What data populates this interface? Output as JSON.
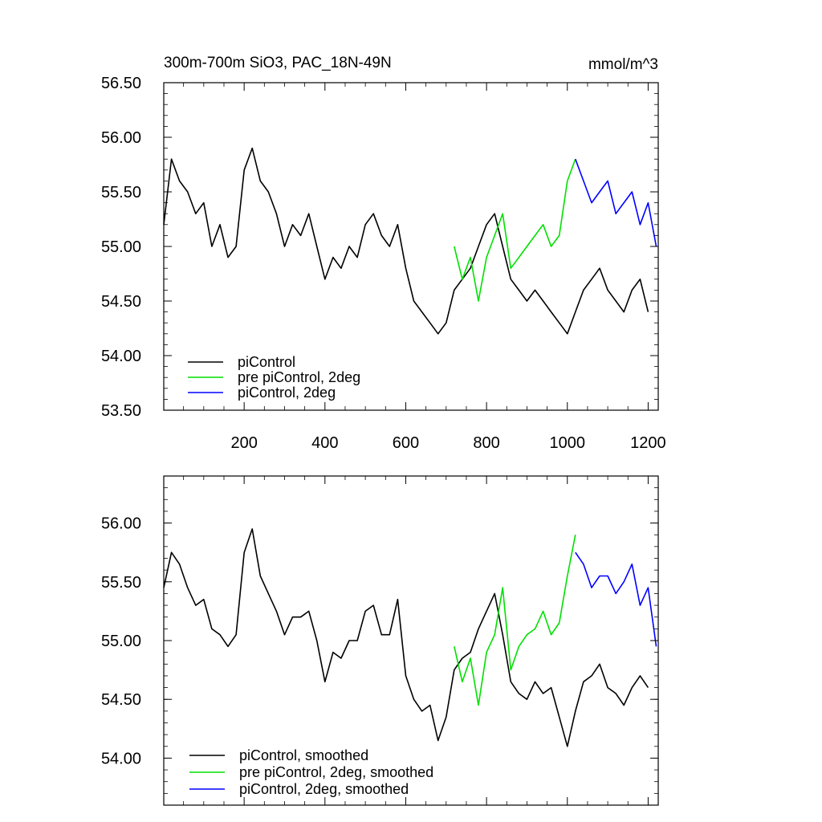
{
  "chart_data": [
    {
      "type": "line",
      "title": "300m-700m SiO3, PAC_18N-49N",
      "units": "mmol/m^3",
      "xlim": [
        1,
        1225
      ],
      "ylim": [
        53.5,
        56.5
      ],
      "yticks": [
        53.5,
        54.0,
        54.5,
        55.0,
        55.5,
        56.0,
        56.5
      ],
      "ytick_labels": [
        "53.50",
        "54.00",
        "54.50",
        "55.00",
        "55.50",
        "56.00",
        "56.50"
      ],
      "xticks": [
        200,
        400,
        600,
        800,
        1000,
        1200
      ],
      "xtick_labels": [
        "200",
        "400",
        "600",
        "800",
        "1000",
        "1200"
      ],
      "legend_position": "bottom-left",
      "series": [
        {
          "name": "piControl",
          "color": "#000000",
          "x": [
            1,
            20,
            40,
            60,
            80,
            100,
            120,
            140,
            160,
            180,
            200,
            220,
            240,
            260,
            280,
            300,
            320,
            340,
            360,
            380,
            400,
            420,
            440,
            460,
            480,
            500,
            520,
            540,
            560,
            580,
            600,
            620,
            640,
            660,
            680,
            700,
            720,
            740,
            760,
            780,
            800,
            820,
            840,
            860,
            880,
            900,
            920,
            940,
            960,
            980,
            1000,
            1020,
            1040,
            1060,
            1080,
            1100,
            1120,
            1140,
            1160,
            1180,
            1200
          ],
          "y": [
            55.2,
            55.8,
            55.6,
            55.5,
            55.3,
            55.4,
            55.0,
            55.2,
            54.9,
            55.0,
            55.7,
            55.9,
            55.6,
            55.5,
            55.3,
            55.0,
            55.2,
            55.1,
            55.3,
            55.0,
            54.7,
            54.9,
            54.8,
            55.0,
            54.9,
            55.2,
            55.3,
            55.1,
            55.0,
            55.2,
            54.8,
            54.5,
            54.4,
            54.3,
            54.2,
            54.3,
            54.6,
            54.7,
            54.8,
            55.0,
            55.2,
            55.3,
            55.0,
            54.7,
            54.6,
            54.5,
            54.6,
            54.5,
            54.4,
            54.3,
            54.2,
            54.4,
            54.6,
            54.7,
            54.8,
            54.6,
            54.5,
            54.4,
            54.6,
            54.7,
            54.4
          ]
        },
        {
          "name": "pre piControl, 2deg",
          "color": "#00e000",
          "x": [
            720,
            740,
            760,
            780,
            800,
            820,
            840,
            860,
            880,
            900,
            920,
            940,
            960,
            980,
            1000,
            1020
          ],
          "y": [
            55.0,
            54.7,
            54.9,
            54.5,
            54.9,
            55.1,
            55.3,
            54.8,
            54.9,
            55.0,
            55.1,
            55.2,
            55.0,
            55.1,
            55.6,
            55.8
          ]
        },
        {
          "name": "piControl, 2deg",
          "color": "#0000ff",
          "x": [
            1020,
            1040,
            1060,
            1080,
            1100,
            1120,
            1140,
            1160,
            1180,
            1200,
            1220
          ],
          "y": [
            55.8,
            55.6,
            55.4,
            55.5,
            55.6,
            55.3,
            55.4,
            55.5,
            55.2,
            55.4,
            55.0
          ]
        }
      ]
    },
    {
      "type": "line",
      "xlim": [
        1,
        1225
      ],
      "ylim": [
        53.6,
        56.4
      ],
      "yticks": [
        54.0,
        54.5,
        55.0,
        55.5,
        56.0
      ],
      "ytick_labels": [
        "54.00",
        "54.50",
        "55.00",
        "55.50",
        "56.00"
      ],
      "xticks": [
        200,
        400,
        600,
        800,
        1000,
        1200
      ],
      "legend_position": "bottom-left",
      "series": [
        {
          "name": "piControl, smoothed",
          "color": "#000000",
          "x": [
            1,
            20,
            40,
            60,
            80,
            100,
            120,
            140,
            160,
            180,
            200,
            220,
            240,
            260,
            280,
            300,
            320,
            340,
            360,
            380,
            400,
            420,
            440,
            460,
            480,
            500,
            520,
            540,
            560,
            580,
            600,
            620,
            640,
            660,
            680,
            700,
            720,
            740,
            760,
            780,
            800,
            820,
            840,
            860,
            880,
            900,
            920,
            940,
            960,
            980,
            1000,
            1020,
            1040,
            1060,
            1080,
            1100,
            1120,
            1140,
            1160,
            1180,
            1200
          ],
          "y": [
            55.45,
            55.75,
            55.65,
            55.45,
            55.3,
            55.35,
            55.1,
            55.05,
            54.95,
            55.05,
            55.75,
            55.95,
            55.55,
            55.4,
            55.25,
            55.05,
            55.2,
            55.2,
            55.25,
            55.0,
            54.65,
            54.9,
            54.85,
            55.0,
            55.0,
            55.25,
            55.3,
            55.05,
            55.05,
            55.35,
            54.7,
            54.5,
            54.4,
            54.45,
            54.15,
            54.35,
            54.75,
            54.85,
            54.9,
            55.1,
            55.25,
            55.4,
            55.05,
            54.65,
            54.55,
            54.5,
            54.65,
            54.55,
            54.6,
            54.35,
            54.1,
            54.4,
            54.65,
            54.7,
            54.8,
            54.6,
            54.55,
            54.45,
            54.6,
            54.7,
            54.6
          ]
        },
        {
          "name": "pre piControl, 2deg, smoothed",
          "color": "#00e000",
          "x": [
            720,
            740,
            760,
            780,
            800,
            820,
            840,
            860,
            880,
            900,
            920,
            940,
            960,
            980,
            1000,
            1020
          ],
          "y": [
            54.95,
            54.65,
            54.85,
            54.45,
            54.9,
            55.05,
            55.45,
            54.75,
            54.95,
            55.05,
            55.1,
            55.25,
            55.05,
            55.15,
            55.55,
            55.9
          ]
        },
        {
          "name": "piControl, 2deg, smoothed",
          "color": "#0000ff",
          "x": [
            1020,
            1040,
            1060,
            1080,
            1100,
            1120,
            1140,
            1160,
            1180,
            1200,
            1220
          ],
          "y": [
            55.75,
            55.65,
            55.45,
            55.55,
            55.55,
            55.4,
            55.5,
            55.65,
            55.3,
            55.45,
            54.95
          ]
        }
      ]
    }
  ]
}
